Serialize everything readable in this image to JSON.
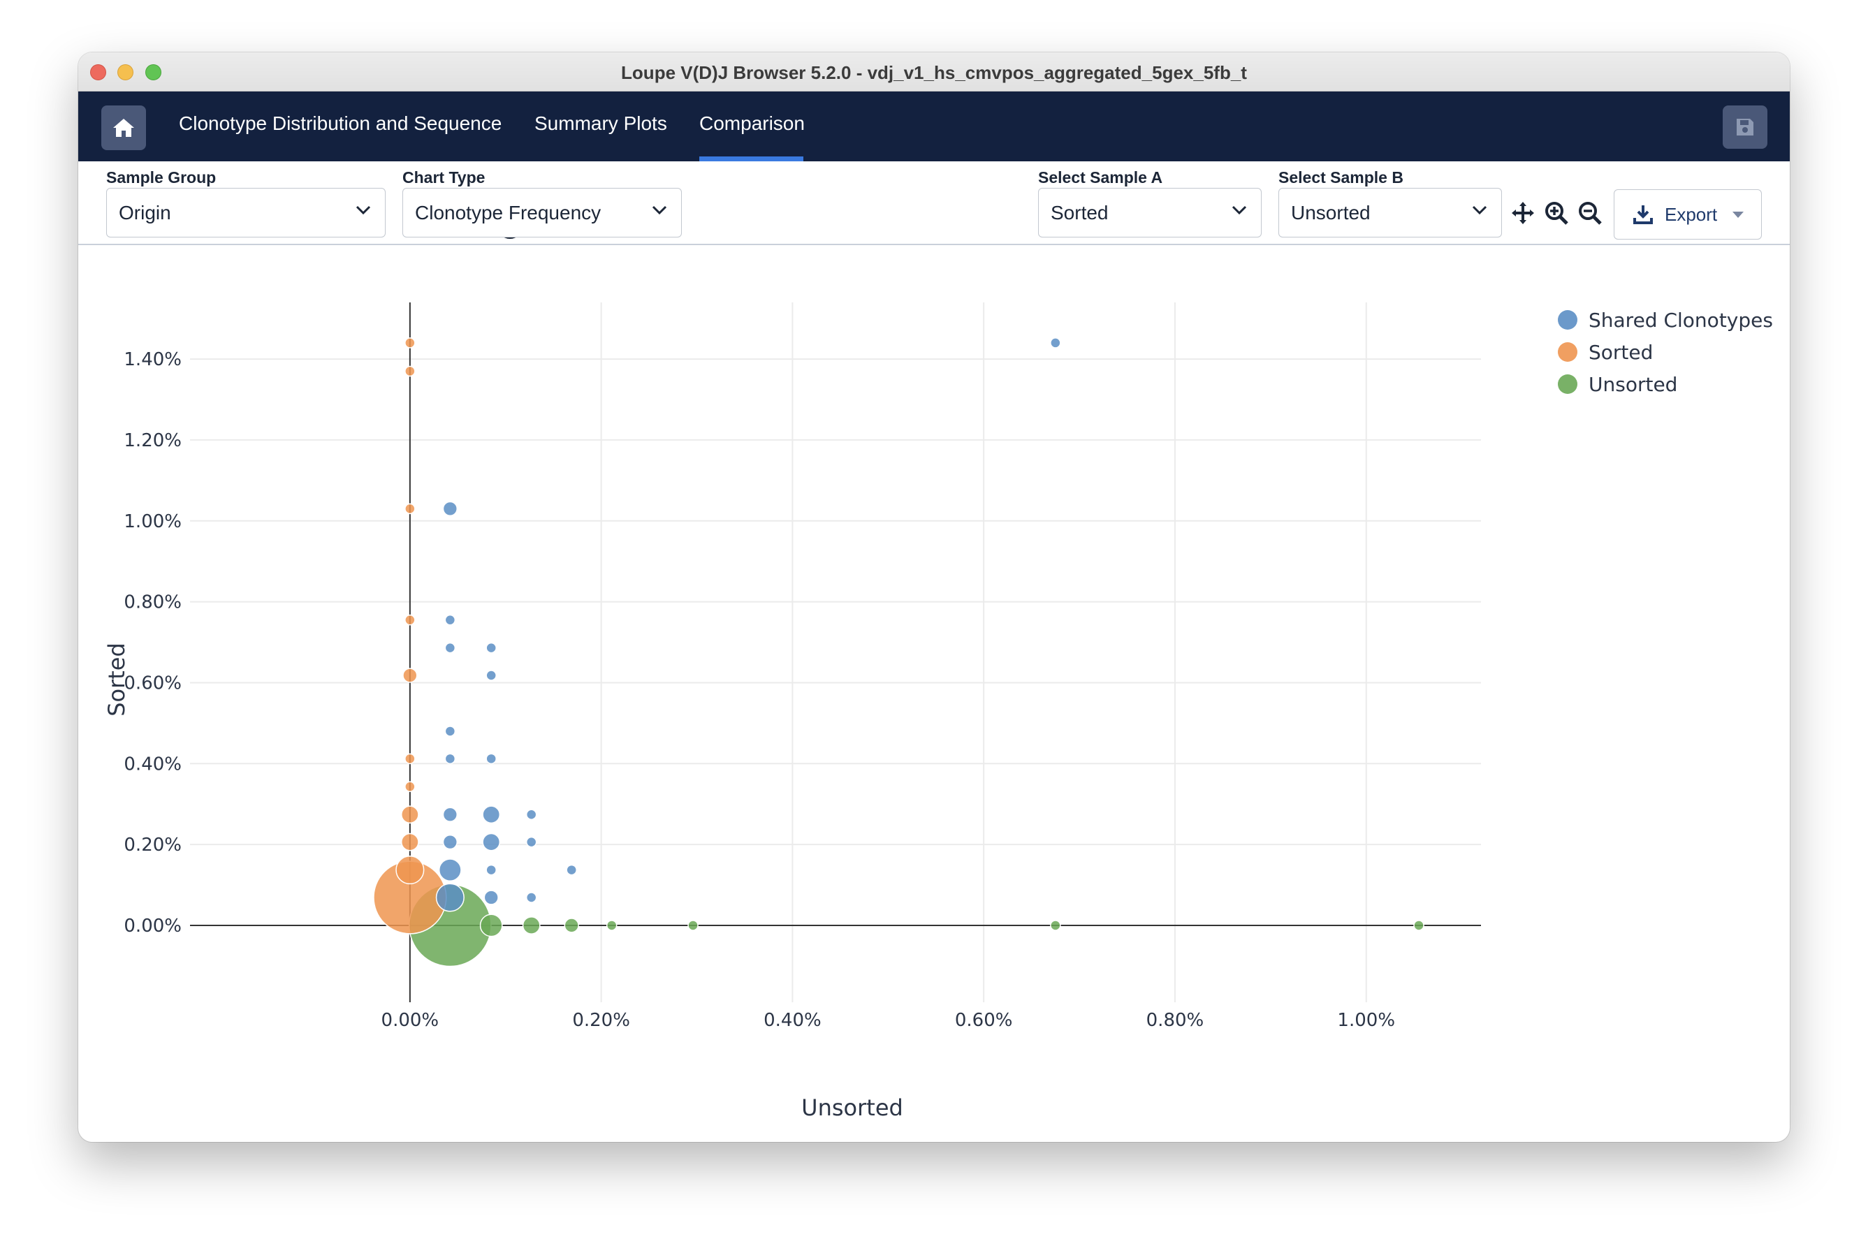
{
  "window": {
    "title": "Loupe V(D)J Browser 5.2.0 - vdj_v1_hs_cmvpos_aggregated_5gex_5fb_t"
  },
  "nav": {
    "tabs": [
      "Clonotype Distribution and Sequence",
      "Summary Plots",
      "Comparison"
    ],
    "active_tab": "Comparison",
    "accent": "#3a7ae0",
    "background": "#13213f"
  },
  "controls": {
    "sample_group": {
      "label": "Sample Group",
      "value": "Origin"
    },
    "chart_type": {
      "label": "Chart Type",
      "value": "Clonotype Frequency",
      "help_icon": "?"
    },
    "sample_a": {
      "label": "Select Sample A",
      "value": "Sorted"
    },
    "sample_b": {
      "label": "Select Sample B",
      "value": "Unsorted"
    },
    "tools": [
      "pan-icon",
      "zoom-in-icon",
      "zoom-out-icon"
    ],
    "export_label": "Export"
  },
  "chart_data": {
    "type": "scatter",
    "xlabel": "Unsorted",
    "ylabel": "Sorted",
    "xlim": [
      -0.23,
      1.12
    ],
    "ylim": [
      -0.19,
      1.54
    ],
    "x_ticks": [
      "0.00%",
      "0.20%",
      "0.40%",
      "0.60%",
      "0.80%",
      "1.00%"
    ],
    "x_tick_values": [
      0,
      0.2,
      0.4,
      0.6,
      0.8,
      1.0
    ],
    "y_ticks": [
      "0.00%",
      "0.20%",
      "0.40%",
      "0.60%",
      "0.80%",
      "1.00%",
      "1.20%",
      "1.40%"
    ],
    "y_tick_values": [
      0,
      0.2,
      0.4,
      0.6,
      0.8,
      1.0,
      1.2,
      1.4
    ],
    "grid": true,
    "legend_position": "right",
    "series": [
      {
        "name": "Shared Clonotypes",
        "color": "#5b8ec4",
        "points": [
          [
            0.675,
            1.44,
            1
          ],
          [
            0.042,
            1.03,
            2
          ],
          [
            0.042,
            0.755,
            1
          ],
          [
            0.042,
            0.686,
            1
          ],
          [
            0.085,
            0.686,
            1
          ],
          [
            0.085,
            0.618,
            1
          ],
          [
            0.042,
            0.48,
            1
          ],
          [
            0.042,
            0.412,
            1
          ],
          [
            0.085,
            0.412,
            1
          ],
          [
            0.042,
            0.274,
            2
          ],
          [
            0.085,
            0.274,
            3
          ],
          [
            0.127,
            0.274,
            1
          ],
          [
            0.042,
            0.206,
            2
          ],
          [
            0.085,
            0.206,
            3
          ],
          [
            0.127,
            0.206,
            1
          ],
          [
            0.042,
            0.137,
            5
          ],
          [
            0.085,
            0.137,
            1
          ],
          [
            0.169,
            0.137,
            1
          ],
          [
            0.042,
            0.069,
            8
          ],
          [
            0.085,
            0.069,
            2
          ],
          [
            0.127,
            0.069,
            1
          ]
        ]
      },
      {
        "name": "Sorted",
        "color": "#ee9550",
        "points": [
          [
            0,
            1.44,
            1
          ],
          [
            0,
            1.37,
            1
          ],
          [
            0,
            1.03,
            1
          ],
          [
            0,
            0.755,
            1
          ],
          [
            0,
            0.618,
            2
          ],
          [
            0,
            0.412,
            1
          ],
          [
            0,
            0.343,
            1
          ],
          [
            0,
            0.274,
            3
          ],
          [
            0,
            0.206,
            3
          ],
          [
            0,
            0.137,
            8
          ],
          [
            0,
            0.069,
            55
          ]
        ]
      },
      {
        "name": "Unsorted",
        "color": "#6aa856",
        "points": [
          [
            0.042,
            0,
            70
          ],
          [
            0.085,
            0,
            5
          ],
          [
            0.127,
            0,
            3
          ],
          [
            0.169,
            0,
            2
          ],
          [
            0.211,
            0,
            1
          ],
          [
            0.296,
            0,
            1
          ],
          [
            0.675,
            0,
            1
          ],
          [
            1.055,
            0,
            1
          ]
        ]
      }
    ]
  }
}
